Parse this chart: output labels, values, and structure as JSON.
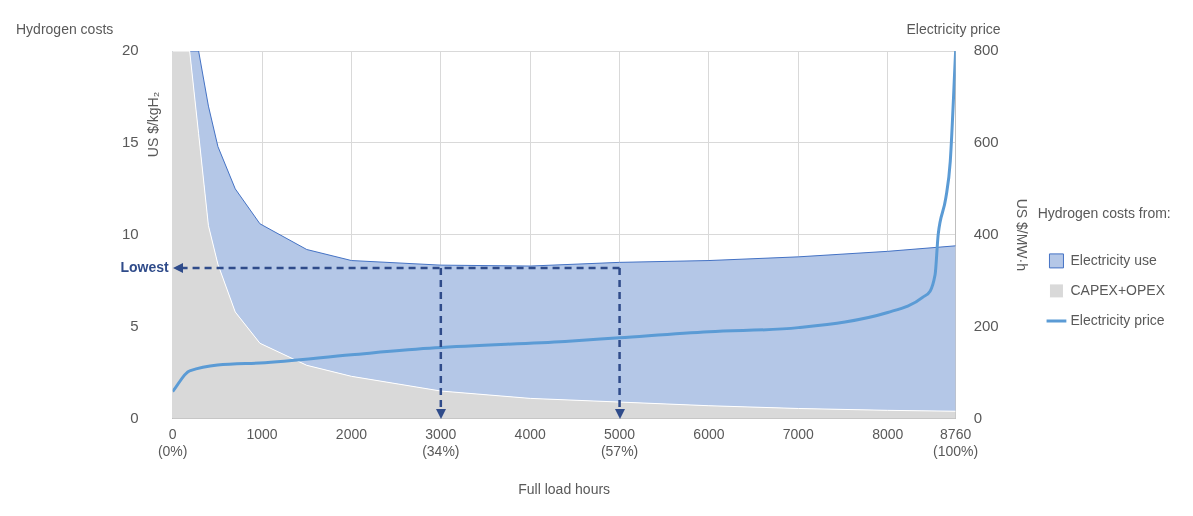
{
  "chart_data": {
    "type": "area",
    "stacked": true,
    "xlabel": "Full load hours",
    "ylabel": "US $/kgH₂",
    "y2label": "US $/MW·h",
    "legend_title": "Hydrogen costs from:",
    "annotations": [
      "Hydrogen costs",
      "Electricity price"
    ],
    "x": [
      0,
      190,
      290,
      400,
      506,
      700,
      976,
      1500,
      2000,
      3000,
      4000,
      5000,
      6000,
      7000,
      8000,
      8760
    ],
    "series": [
      {
        "name": "CAPEX+OPEX",
        "color": "#d9d9d9",
        "values": [
          20,
          20,
          15.5,
          10.5,
          8.4,
          5.8,
          4.1,
          2.9,
          2.3,
          1.5,
          1.1,
          0.9,
          0.7,
          0.55,
          0.45,
          0.4
        ]
      },
      {
        "name": "Electricity use",
        "color": "#b4c7e7",
        "values": [
          0,
          0,
          4.5,
          6.5,
          6.4,
          6.7,
          6.5,
          6.3,
          6.3,
          6.85,
          7.2,
          7.6,
          7.9,
          8.25,
          8.65,
          9.0
        ]
      },
      {
        "name": "Electricity price",
        "type": "line",
        "axis": "y2",
        "color": "#5b9bd5",
        "x": [
          0,
          190,
          976,
          2000,
          2940,
          4390,
          5000,
          6000,
          7000,
          8000,
          8390,
          8530,
          8565,
          8650,
          8700,
          8760
        ],
        "values": [
          59,
          104,
          121,
          139,
          154,
          168,
          176,
          189,
          198,
          231,
          264,
          313,
          401,
          480,
          560,
          800
        ]
      }
    ],
    "xlim": [
      0,
      8760
    ],
    "xticks": [
      {
        "value": 0,
        "label": "0\n(0%)"
      },
      1000,
      2000,
      {
        "value": 3000,
        "label": "3000\n(34%)"
      },
      4000,
      {
        "value": 5000,
        "label": "5000\n(57%)"
      },
      6000,
      7000,
      8000,
      {
        "value": 8760,
        "label": "8760\n(100%)"
      }
    ],
    "ylim": [
      0,
      20
    ],
    "yticks": [
      0,
      5,
      10,
      15,
      20
    ],
    "y2lim": [
      0,
      800
    ],
    "y2ticks": [
      0,
      200,
      400,
      600,
      800
    ],
    "ref_lines": [
      {
        "axis": "y",
        "value": 8.2,
        "label": "Lowest",
        "color": "#2f4b8a",
        "line_style": "dashed"
      },
      {
        "axis": "x",
        "value": 3000,
        "color": "#2f4b8a",
        "line_style": "dashed"
      },
      {
        "axis": "x",
        "value": 5000,
        "color": "#2f4b8a",
        "line_style": "dashed"
      }
    ],
    "grid": true,
    "legend": "right"
  }
}
